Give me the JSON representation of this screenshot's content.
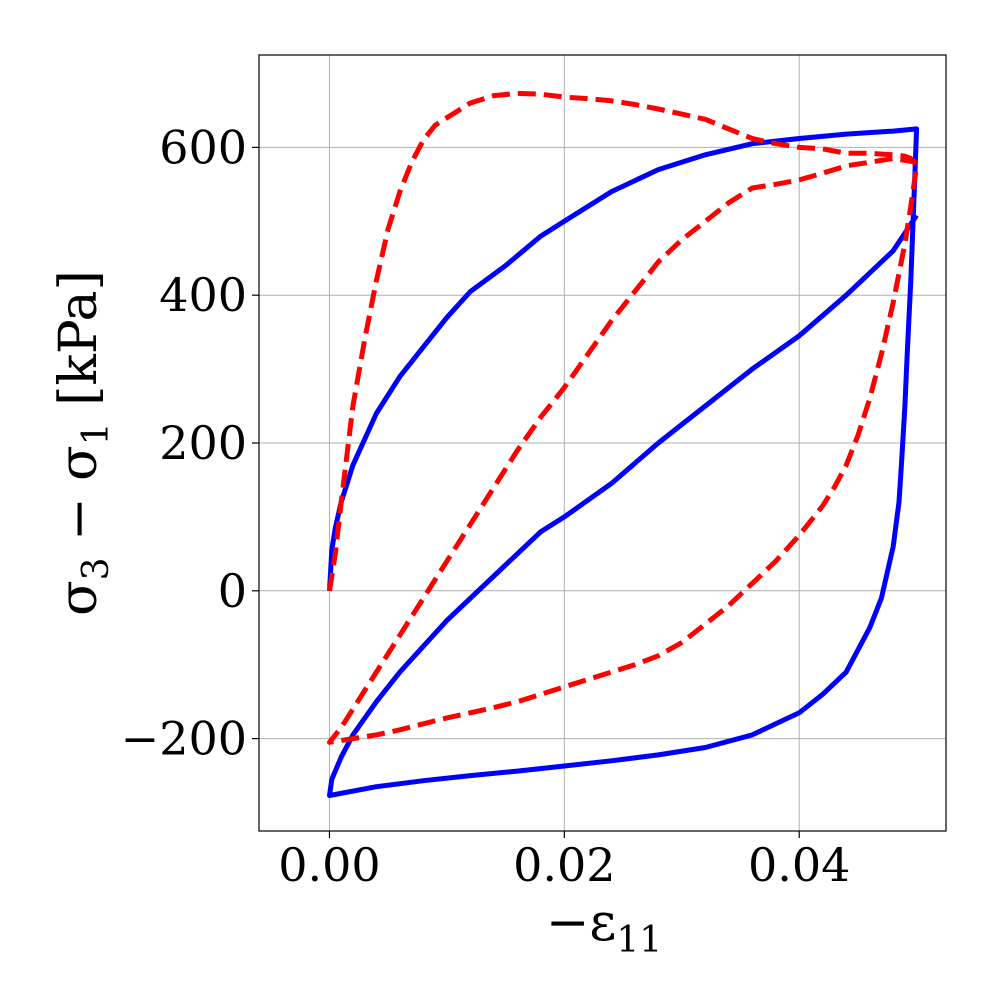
{
  "chart_data": {
    "type": "line",
    "xlabel": "−ε",
    "xlabel_sub": "11",
    "ylabel_parts": {
      "a": "σ",
      "a_sub": "3",
      "minus": " − ",
      "b": "σ",
      "b_sub": "1",
      "unit": " [kPa]"
    },
    "xlim": [
      -0.006,
      0.0525
    ],
    "ylim": [
      -325,
      725
    ],
    "xticks": [
      {
        "value": 0.0,
        "label": "0.00"
      },
      {
        "value": 0.02,
        "label": "0.02"
      },
      {
        "value": 0.04,
        "label": "0.04"
      }
    ],
    "yticks": [
      {
        "value": -200,
        "label": "−200"
      },
      {
        "value": 0,
        "label": "0"
      },
      {
        "value": 200,
        "label": "200"
      },
      {
        "value": 400,
        "label": "400"
      },
      {
        "value": 600,
        "label": "600"
      }
    ],
    "grid": true,
    "legend": "none",
    "series": [
      {
        "style": "solid",
        "color": "#0000ff",
        "points": [
          [
            0.0,
            0
          ],
          [
            0.0002,
            55
          ],
          [
            0.0005,
            85
          ],
          [
            0.001,
            120
          ],
          [
            0.002,
            170
          ],
          [
            0.004,
            240
          ],
          [
            0.006,
            290
          ],
          [
            0.008,
            330
          ],
          [
            0.01,
            370
          ],
          [
            0.012,
            405
          ],
          [
            0.015,
            440
          ],
          [
            0.018,
            480
          ],
          [
            0.02,
            500
          ],
          [
            0.024,
            540
          ],
          [
            0.028,
            570
          ],
          [
            0.032,
            590
          ],
          [
            0.036,
            605
          ],
          [
            0.04,
            612
          ],
          [
            0.044,
            618
          ],
          [
            0.048,
            622
          ],
          [
            0.05,
            625
          ],
          [
            0.0497,
            500
          ],
          [
            0.0495,
            420
          ],
          [
            0.0492,
            320
          ],
          [
            0.049,
            250
          ],
          [
            0.0487,
            170
          ],
          [
            0.0485,
            120
          ],
          [
            0.048,
            60
          ],
          [
            0.047,
            -10
          ],
          [
            0.046,
            -50
          ],
          [
            0.044,
            -110
          ],
          [
            0.042,
            -140
          ],
          [
            0.04,
            -165
          ],
          [
            0.036,
            -195
          ],
          [
            0.032,
            -212
          ],
          [
            0.028,
            -222
          ],
          [
            0.024,
            -230
          ],
          [
            0.02,
            -237
          ],
          [
            0.016,
            -244
          ],
          [
            0.012,
            -250
          ],
          [
            0.008,
            -257
          ],
          [
            0.004,
            -265
          ],
          [
            0.0,
            -277
          ],
          [
            0.0002,
            -255
          ],
          [
            0.001,
            -225
          ],
          [
            0.002,
            -195
          ],
          [
            0.004,
            -150
          ],
          [
            0.006,
            -110
          ],
          [
            0.008,
            -75
          ],
          [
            0.01,
            -40
          ],
          [
            0.014,
            20
          ],
          [
            0.018,
            80
          ],
          [
            0.02,
            100
          ],
          [
            0.024,
            145
          ],
          [
            0.028,
            200
          ],
          [
            0.032,
            250
          ],
          [
            0.036,
            300
          ],
          [
            0.04,
            345
          ],
          [
            0.044,
            400
          ],
          [
            0.048,
            460
          ],
          [
            0.05,
            508
          ]
        ]
      },
      {
        "style": "dashed",
        "color": "#ff0000",
        "points": [
          [
            0.0,
            0
          ],
          [
            0.0005,
            50
          ],
          [
            0.001,
            120
          ],
          [
            0.002,
            250
          ],
          [
            0.003,
            340
          ],
          [
            0.004,
            420
          ],
          [
            0.005,
            490
          ],
          [
            0.006,
            540
          ],
          [
            0.007,
            580
          ],
          [
            0.008,
            610
          ],
          [
            0.009,
            630
          ],
          [
            0.01,
            640
          ],
          [
            0.012,
            660
          ],
          [
            0.014,
            670
          ],
          [
            0.016,
            673
          ],
          [
            0.018,
            672
          ],
          [
            0.02,
            668
          ],
          [
            0.022,
            666
          ],
          [
            0.024,
            663
          ],
          [
            0.026,
            658
          ],
          [
            0.028,
            652
          ],
          [
            0.03,
            645
          ],
          [
            0.032,
            638
          ],
          [
            0.034,
            625
          ],
          [
            0.036,
            612
          ],
          [
            0.038,
            605
          ],
          [
            0.04,
            600
          ],
          [
            0.042,
            598
          ],
          [
            0.044,
            592
          ],
          [
            0.046,
            592
          ],
          [
            0.048,
            590
          ],
          [
            0.049,
            588
          ],
          [
            0.0495,
            585
          ],
          [
            0.05,
            575
          ],
          [
            0.0495,
            520
          ],
          [
            0.049,
            470
          ],
          [
            0.048,
            390
          ],
          [
            0.047,
            320
          ],
          [
            0.046,
            260
          ],
          [
            0.045,
            210
          ],
          [
            0.044,
            170
          ],
          [
            0.043,
            140
          ],
          [
            0.042,
            115
          ],
          [
            0.04,
            75
          ],
          [
            0.038,
            40
          ],
          [
            0.036,
            10
          ],
          [
            0.034,
            -20
          ],
          [
            0.032,
            -45
          ],
          [
            0.03,
            -70
          ],
          [
            0.028,
            -88
          ],
          [
            0.026,
            -100
          ],
          [
            0.024,
            -110
          ],
          [
            0.022,
            -120
          ],
          [
            0.02,
            -130
          ],
          [
            0.018,
            -140
          ],
          [
            0.016,
            -150
          ],
          [
            0.014,
            -158
          ],
          [
            0.012,
            -165
          ],
          [
            0.01,
            -172
          ],
          [
            0.008,
            -180
          ],
          [
            0.006,
            -188
          ],
          [
            0.004,
            -195
          ],
          [
            0.002,
            -200
          ],
          [
            0.0,
            -205
          ],
          [
            0.001,
            -185
          ],
          [
            0.002,
            -160
          ],
          [
            0.004,
            -110
          ],
          [
            0.006,
            -60
          ],
          [
            0.008,
            -10
          ],
          [
            0.01,
            40
          ],
          [
            0.012,
            90
          ],
          [
            0.014,
            140
          ],
          [
            0.016,
            190
          ],
          [
            0.018,
            235
          ],
          [
            0.02,
            275
          ],
          [
            0.022,
            320
          ],
          [
            0.024,
            365
          ],
          [
            0.026,
            405
          ],
          [
            0.028,
            445
          ],
          [
            0.03,
            475
          ],
          [
            0.032,
            500
          ],
          [
            0.034,
            525
          ],
          [
            0.036,
            545
          ],
          [
            0.038,
            550
          ],
          [
            0.04,
            556
          ],
          [
            0.042,
            565
          ],
          [
            0.044,
            575
          ],
          [
            0.046,
            580
          ],
          [
            0.048,
            585
          ],
          [
            0.05,
            580
          ]
        ]
      }
    ]
  }
}
